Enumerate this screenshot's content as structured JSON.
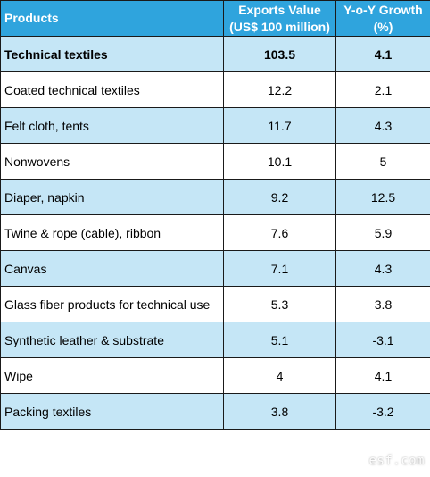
{
  "table": {
    "headers": {
      "products": "Products",
      "exports_line1": "Exports Value",
      "exports_line2": "(US$ 100 million)",
      "growth_line1": "Y-o-Y Growth",
      "growth_line2": "(%)"
    },
    "rows": [
      {
        "product": "Technical textiles",
        "exports": "103.5",
        "growth": "4.1"
      },
      {
        "product": "Coated technical textiles",
        "exports": "12.2",
        "growth": "2.1"
      },
      {
        "product": "Felt cloth, tents",
        "exports": "11.7",
        "growth": "4.3"
      },
      {
        "product": "Nonwovens",
        "exports": "10.1",
        "growth": "5"
      },
      {
        "product": "Diaper, napkin",
        "exports": "9.2",
        "growth": "12.5"
      },
      {
        "product": "Twine & rope (cable), ribbon",
        "exports": "7.6",
        "growth": "5.9"
      },
      {
        "product": "Canvas",
        "exports": "7.1",
        "growth": "4.3"
      },
      {
        "product": "Glass fiber products for technical use",
        "exports": "5.3",
        "growth": "3.8"
      },
      {
        "product": "Synthetic leather & substrate",
        "exports": "5.1",
        "growth": "-3.1"
      },
      {
        "product": "Wipe",
        "exports": "4",
        "growth": "4.1"
      },
      {
        "product": "Packing textiles",
        "exports": "3.8",
        "growth": "-3.2"
      }
    ]
  },
  "watermark": "esf.com",
  "colors": {
    "header_bg": "#2fa4dd",
    "alt_row_bg": "#c5e6f6",
    "plain_row_bg": "#ffffff"
  }
}
